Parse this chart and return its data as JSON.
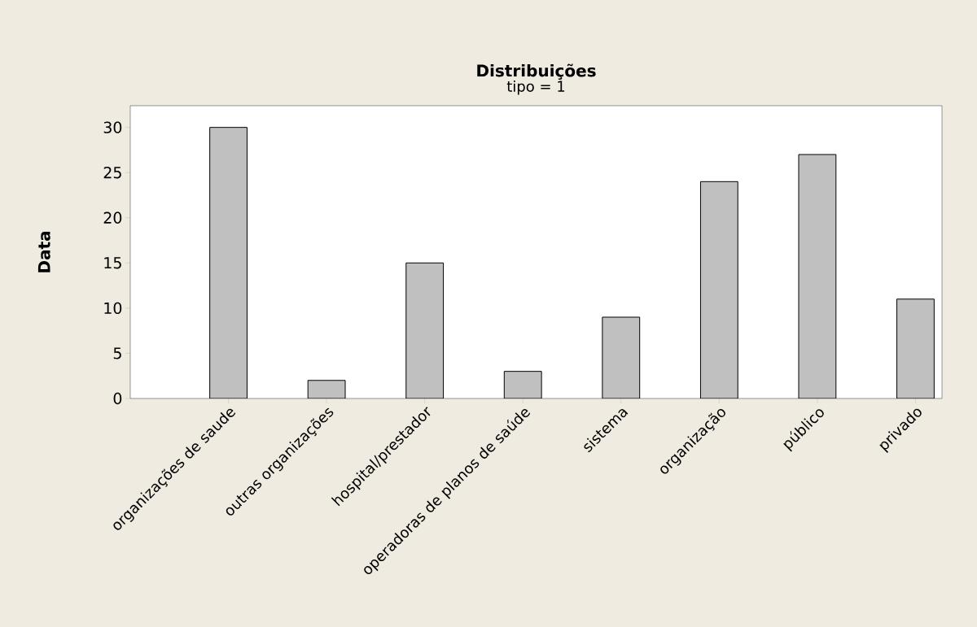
{
  "chart_data": {
    "type": "bar",
    "title": "Distribuições",
    "subtitle": "tipo = 1",
    "ylabel": "Data",
    "categories": [
      "organizações de saude",
      "outras organizações",
      "hospital/prestador",
      "operadoras de planos de saúde",
      "sistema",
      "organização",
      "público",
      "privado"
    ],
    "values": [
      30,
      2,
      15,
      3,
      9,
      24,
      27,
      11
    ],
    "color": "#c0c0c0",
    "ylim": [
      0,
      32.4
    ],
    "yticks": [
      0,
      5,
      10,
      15,
      20,
      25,
      30
    ]
  }
}
